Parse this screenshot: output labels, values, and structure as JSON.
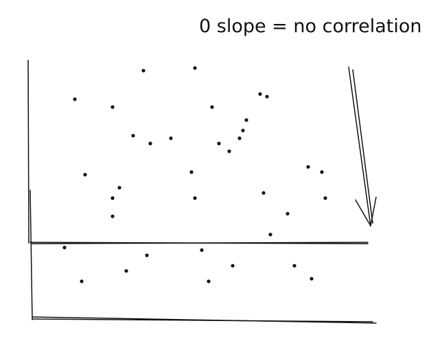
{
  "chart_data": {
    "type": "scatter",
    "title": "0 slope = no correlation",
    "xlabel": "",
    "ylabel": "",
    "grid": false,
    "xlim": [
      0,
      100
    ],
    "ylim": [
      0,
      100
    ],
    "series": [
      {
        "points": [
          [
            13,
            85
          ],
          [
            24,
            82
          ],
          [
            33,
            96
          ],
          [
            48,
            97
          ],
          [
            53,
            82
          ],
          [
            67,
            87
          ],
          [
            69,
            86
          ],
          [
            30,
            71
          ],
          [
            35,
            68
          ],
          [
            41,
            70
          ],
          [
            55,
            68
          ],
          [
            58,
            65
          ],
          [
            61,
            70
          ],
          [
            62,
            73
          ],
          [
            63,
            77
          ],
          [
            16,
            56
          ],
          [
            26,
            51
          ],
          [
            24,
            47
          ],
          [
            81,
            59
          ],
          [
            85,
            57
          ],
          [
            86,
            47
          ],
          [
            47,
            57
          ],
          [
            48,
            47
          ],
          [
            68,
            49
          ],
          [
            24,
            40
          ],
          [
            75,
            41
          ],
          [
            70,
            33
          ],
          [
            10,
            28
          ],
          [
            34,
            25
          ],
          [
            50,
            27
          ],
          [
            15,
            15
          ],
          [
            28,
            19
          ],
          [
            52,
            15
          ],
          [
            59,
            21
          ],
          [
            77,
            21
          ],
          [
            82,
            16
          ]
        ]
      }
    ],
    "annotations": [
      {
        "text": "",
        "kind": "reference-line",
        "y": 27
      },
      {
        "text": "",
        "kind": "arrow",
        "direction": "down"
      }
    ]
  },
  "colors": {
    "ink": "#111111",
    "background": "#ffffff"
  }
}
